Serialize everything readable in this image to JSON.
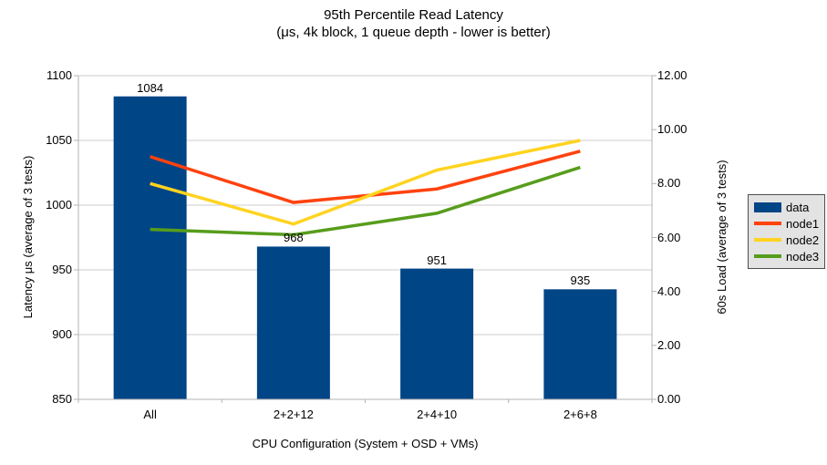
{
  "chart_data": {
    "type": "bar+line",
    "title": "95th Percentile Read Latency",
    "subtitle": "(μs, 4k block, 1 queue depth - lower is better)",
    "categories": [
      "All",
      "2+2+12",
      "2+4+10",
      "2+6+8"
    ],
    "x_axis": {
      "label": "CPU Configuration (System + OSD + VMs)"
    },
    "left_axis": {
      "label": "Latency μs (average of 3 tests)",
      "min": 850,
      "max": 1100,
      "step": 50
    },
    "right_axis": {
      "label": "60s Load (average of 3 tests)",
      "min": 0,
      "max": 12,
      "step": 2,
      "decimals": 2
    },
    "bar_series": {
      "name": "data",
      "color": "#004586",
      "axis": "left",
      "values": [
        1084,
        968,
        951,
        935
      ],
      "value_labels": [
        "1084",
        "968",
        "951",
        "935"
      ]
    },
    "line_series": [
      {
        "name": "node1",
        "color": "#FF420E",
        "axis": "right",
        "values": [
          9.0,
          7.3,
          7.8,
          9.2
        ]
      },
      {
        "name": "node2",
        "color": "#FFD320",
        "axis": "right",
        "values": [
          8.0,
          6.5,
          8.5,
          9.6
        ]
      },
      {
        "name": "node3",
        "color": "#579D1C",
        "axis": "right",
        "values": [
          6.3,
          6.1,
          6.9,
          8.6
        ]
      }
    ],
    "legend": {
      "position": "right",
      "entries": [
        {
          "label": "data",
          "color": "#004586",
          "type": "bar"
        },
        {
          "label": "node1",
          "color": "#FF420E",
          "type": "line"
        },
        {
          "label": "node2",
          "color": "#FFD320",
          "type": "line"
        },
        {
          "label": "node3",
          "color": "#579D1C",
          "type": "line"
        }
      ]
    },
    "grid": {
      "horizontal": true,
      "vertical": false,
      "color": "#cccccc"
    },
    "axis_color": "#b3b3b3",
    "background": "#ffffff"
  }
}
